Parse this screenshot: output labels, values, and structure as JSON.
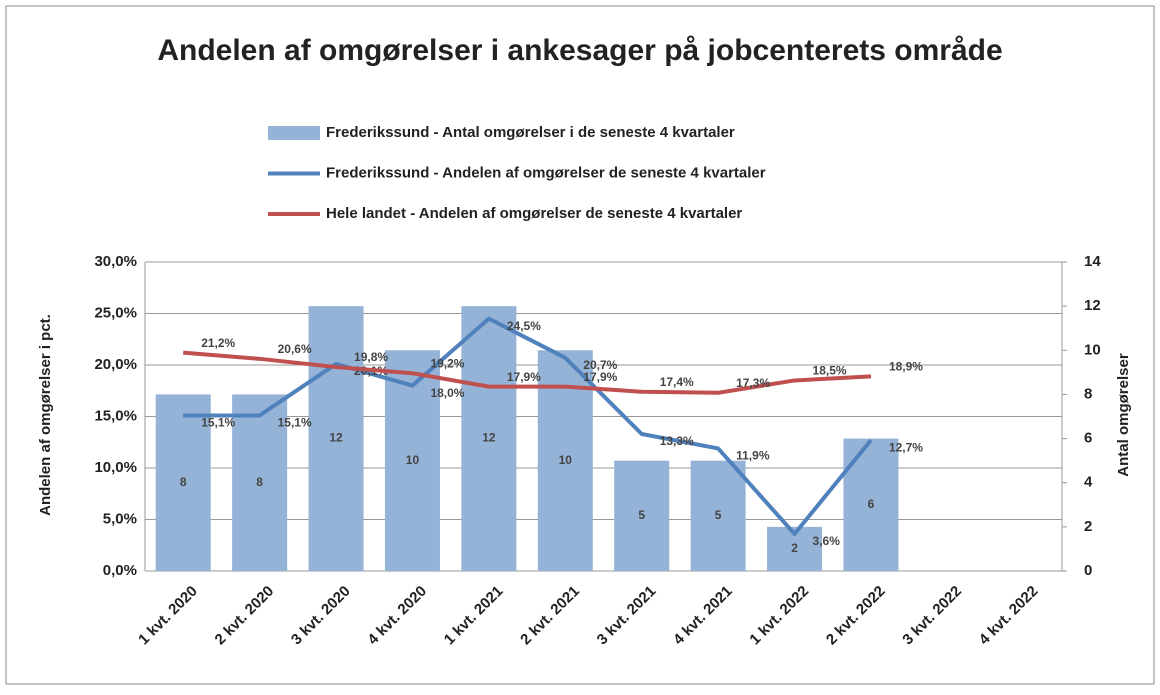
{
  "chart_data": {
    "type": "bar+line",
    "title": "Andelen af omgørelser i ankesager på jobcenterets område",
    "ylabel": "Andelen af omgørelser  i pct.",
    "y2label": "Antal omgørelser",
    "categories": [
      "1 kvt. 2020",
      "2 kvt. 2020",
      "3 kvt. 2020",
      "4 kvt. 2020",
      "1 kvt. 2021",
      "2 kvt. 2021",
      "3 kvt. 2021",
      "4 kvt. 2021",
      "1 kvt. 2022",
      "2 kvt. 2022",
      "3 kvt. 2022",
      "4 kvt. 2022"
    ],
    "series": [
      {
        "name": "Frederikssund - Antal  omgørelser i de seneste 4 kvartaler",
        "type": "bar",
        "axis": "y2",
        "color": "#95b3d7",
        "values": [
          8,
          8,
          12,
          10,
          12,
          10,
          5,
          5,
          2,
          6,
          null,
          null
        ]
      },
      {
        "name": "Frederikssund - Andelen af  omgørelser de seneste 4 kvartaler",
        "type": "line",
        "color": "#4f81bd",
        "values": [
          15.1,
          15.1,
          20.1,
          18.0,
          24.5,
          20.7,
          13.3,
          11.9,
          3.6,
          12.7,
          null,
          null
        ],
        "value_labels": [
          "15,1%",
          "15,1%",
          "20,1%",
          "18,0%",
          "24,5%",
          "20,7%",
          "13,3%",
          "11,9%",
          "3,6%",
          "12,7%",
          null,
          null
        ]
      },
      {
        "name": "Hele landet - Andelen af  omgørelser de seneste 4 kvartaler",
        "type": "line",
        "color": "#c0504d",
        "values": [
          21.2,
          20.6,
          19.8,
          19.2,
          17.9,
          17.9,
          17.4,
          17.3,
          18.5,
          18.9,
          null,
          null
        ],
        "value_labels": [
          "21,2%",
          "20,6%",
          "19,8%",
          "19,2%",
          "17,9%",
          "17,9%",
          "17,4%",
          "17,3%",
          "18,5%",
          "18,9%",
          null,
          null
        ]
      }
    ],
    "ylim": [
      0,
      30
    ],
    "yticks": [
      {
        "value": 0,
        "label": "0,0%"
      },
      {
        "value": 5,
        "label": "5,0%"
      },
      {
        "value": 10,
        "label": "10,0%"
      },
      {
        "value": 15,
        "label": "15,0%"
      },
      {
        "value": 20,
        "label": "20,0%"
      },
      {
        "value": 25,
        "label": "25,0%"
      },
      {
        "value": 30,
        "label": "30,0%"
      }
    ],
    "y2lim": [
      0,
      14
    ],
    "y2ticks": [
      0,
      2,
      4,
      6,
      8,
      10,
      12,
      14
    ],
    "grid": true
  }
}
